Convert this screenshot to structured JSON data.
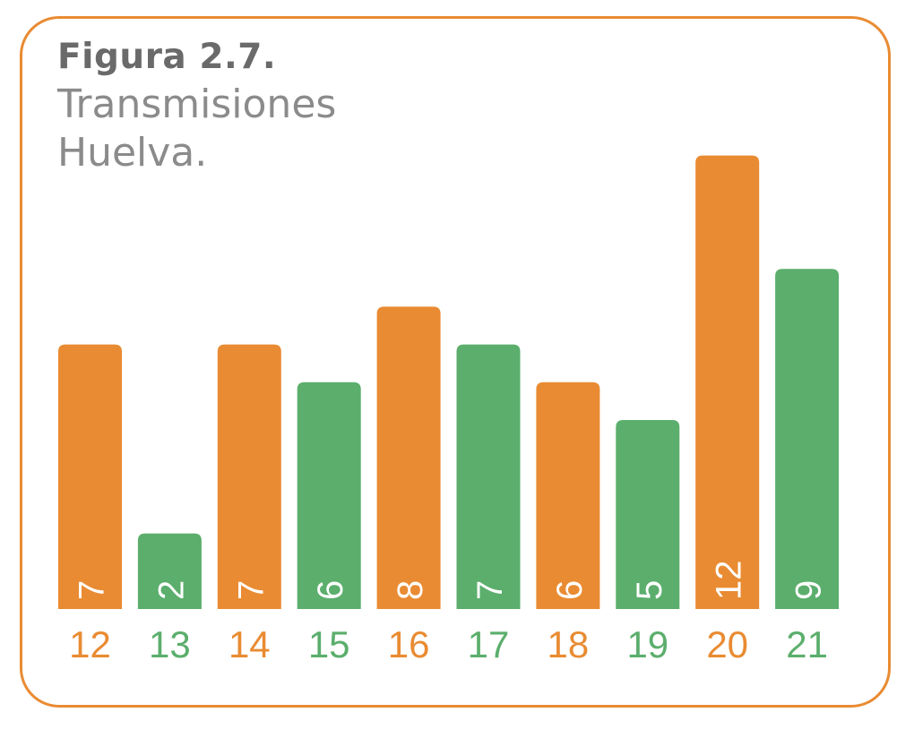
{
  "figure": {
    "label": "Figura 2.7.",
    "title_lines": [
      "Transmisiones",
      "Huelva."
    ]
  },
  "colors": {
    "orange": "#E98B32",
    "green": "#5BAE6C",
    "frame": "#E98B32",
    "bar_label": "#ffffff"
  },
  "chart_data": {
    "type": "bar",
    "title": "Figura 2.7. Transmisiones Huelva.",
    "categories": [
      "12",
      "13",
      "14",
      "15",
      "16",
      "17",
      "18",
      "19",
      "20",
      "21"
    ],
    "values": [
      7,
      2,
      7,
      6,
      8,
      7,
      6,
      5,
      12,
      9
    ],
    "bar_colors": [
      "orange",
      "green",
      "orange",
      "green",
      "orange",
      "green",
      "orange",
      "green",
      "orange",
      "green"
    ],
    "data_labels": "inside-bottom, rotated",
    "ylim": [
      0,
      12
    ],
    "grid": false,
    "legend": "none",
    "xlabel": "",
    "ylabel": ""
  }
}
